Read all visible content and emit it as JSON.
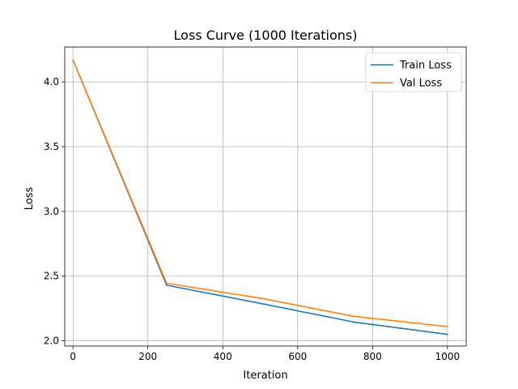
{
  "chart_data": {
    "type": "line",
    "title": "Loss Curve (1000 Iterations)",
    "xlabel": "Iteration",
    "ylabel": "Loss",
    "xlim": [
      -22,
      1050
    ],
    "ylim": [
      1.96,
      4.27
    ],
    "xticks": [
      0,
      200,
      400,
      600,
      800,
      1000
    ],
    "xtick_labels": [
      "0",
      "200",
      "400",
      "600",
      "800",
      "1000"
    ],
    "yticks": [
      2.0,
      2.5,
      3.0,
      3.5,
      4.0
    ],
    "ytick_labels": [
      "2.0",
      "2.5",
      "3.0",
      "3.5",
      "4.0"
    ],
    "grid": true,
    "legend": "top-right",
    "x": [
      0,
      250,
      500,
      750,
      1000
    ],
    "series": [
      {
        "name": "Train Loss",
        "color": "#1f77b4",
        "values": [
          4.17,
          2.43,
          2.29,
          2.145,
          2.05
        ]
      },
      {
        "name": "Val Loss",
        "color": "#ff7f0e",
        "values": [
          4.17,
          2.445,
          2.33,
          2.19,
          2.11
        ]
      }
    ]
  }
}
